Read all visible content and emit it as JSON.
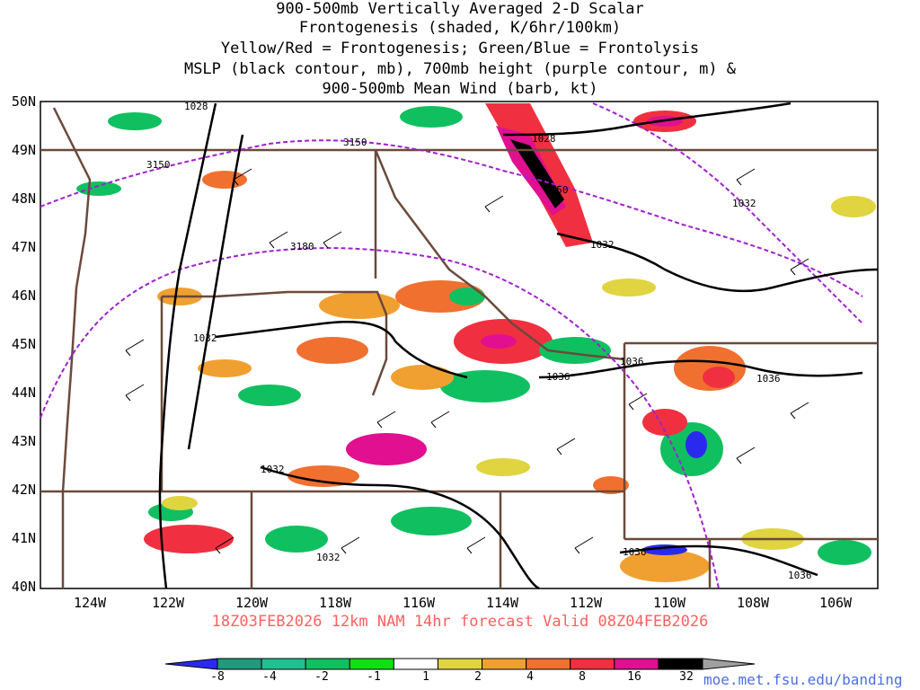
{
  "title": {
    "line1": "900-500mb Vertically Averaged 2-D Scalar",
    "line2": "Frontogenesis (shaded, K/6hr/100km)",
    "line3": "Yellow/Red = Frontogenesis;  Green/Blue = Frontolysis",
    "line4": "MSLP (black contour, mb), 700mb height (purple contour, m) &",
    "line5": "900-500mb Mean Wind (barb, kt)"
  },
  "axes": {
    "lat_labels": [
      "50N",
      "49N",
      "48N",
      "47N",
      "46N",
      "45N",
      "44N",
      "43N",
      "42N",
      "41N",
      "40N"
    ],
    "lon_labels": [
      "124W",
      "122W",
      "120W",
      "118W",
      "116W",
      "114W",
      "112W",
      "110W",
      "108W",
      "106W"
    ]
  },
  "contour_labels": {
    "mslp": [
      "1028",
      "1028",
      "1032",
      "1032",
      "1032",
      "1032",
      "1036",
      "1036",
      "1036",
      "1036",
      "1036",
      "1032"
    ],
    "height": [
      "3150",
      "3150",
      "3150",
      "3180"
    ]
  },
  "valid_line": "18Z03FEB2026 12km NAM 14hr forecast Valid 08Z04FEB2026",
  "colorbar": {
    "labels": [
      "-8",
      "-4",
      "-2",
      "-1",
      "1",
      "2",
      "4",
      "8",
      "16",
      "32"
    ],
    "colors": [
      "#2a2aee",
      "#1f9a7a",
      "#20c090",
      "#10c060",
      "#10e010",
      "#ffffff",
      "#e0d440",
      "#f0a030",
      "#f07030",
      "#f03040",
      "#e01090",
      "#000000",
      "#a0a0a0"
    ]
  },
  "credit": "moe.met.fsu.edu/banding"
}
